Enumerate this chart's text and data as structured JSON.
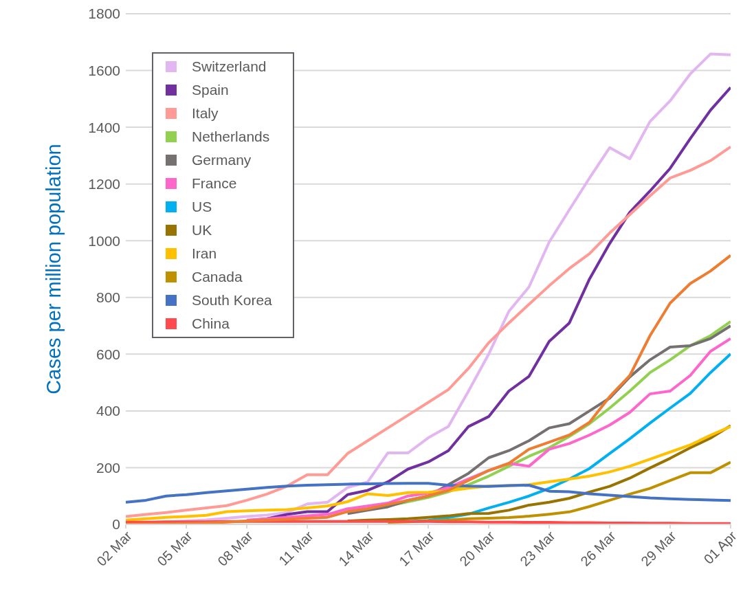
{
  "chart_data": {
    "type": "line",
    "ylabel": "Cases per million population",
    "categories": [
      "02 Mar",
      null,
      null,
      "05 Mar",
      null,
      null,
      "08 Mar",
      null,
      null,
      "11 Mar",
      null,
      null,
      "14 Mar",
      null,
      null,
      "17 Mar",
      null,
      null,
      "20 Mar",
      null,
      null,
      "23 Mar",
      null,
      null,
      "26 Mar",
      null,
      null,
      "29 Mar",
      null,
      null,
      "01 Apr"
    ],
    "series": [
      {
        "name": "Switzerland",
        "color": "#e2b6f0",
        "values": [
          3,
          5,
          8,
          12,
          16,
          22,
          28,
          33,
          42,
          72,
          78,
          130,
          150,
          252,
          252,
          305,
          345,
          470,
          600,
          751,
          837,
          995,
          1109,
          1221,
          1328,
          1289,
          1420,
          1493,
          1588,
          1658,
          1655
        ]
      },
      {
        "name": "Spain",
        "color": "#7030a0",
        "values": [
          null,
          null,
          null,
          null,
          null,
          null,
          13,
          20,
          35,
          45,
          45,
          105,
          120,
          150,
          195,
          220,
          260,
          345,
          380,
          470,
          522,
          645,
          710,
          865,
          990,
          1100,
          1175,
          1255,
          1360,
          1460,
          1540
        ]
      },
      {
        "name": "Italy",
        "color": "#ff9b94",
        "values": [
          28,
          35,
          42,
          50,
          58,
          66,
          85,
          107,
          135,
          175,
          175,
          250,
          295,
          340,
          385,
          430,
          475,
          550,
          640,
          710,
          776,
          841,
          902,
          954,
          1027,
          1092,
          1158,
          1221,
          1248,
          1282,
          1331
        ]
      },
      {
        "name": "Netherlands",
        "color": "#92d050",
        "values": [
          null,
          null,
          null,
          null,
          null,
          null,
          null,
          null,
          null,
          null,
          null,
          50,
          55,
          65,
          80,
          95,
          115,
          140,
          170,
          205,
          240,
          270,
          310,
          355,
          410,
          470,
          535,
          580,
          630,
          665,
          715
        ]
      },
      {
        "name": "Germany",
        "color": "#767171",
        "values": [
          null,
          null,
          null,
          null,
          null,
          null,
          null,
          null,
          null,
          null,
          null,
          38,
          50,
          62,
          85,
          100,
          140,
          180,
          235,
          260,
          295,
          340,
          355,
          400,
          445,
          520,
          580,
          625,
          630,
          655,
          700
        ]
      },
      {
        "name": "France",
        "color": "#ff66cc",
        "values": [
          null,
          null,
          null,
          null,
          null,
          null,
          15,
          20,
          25,
          30,
          35,
          55,
          65,
          75,
          100,
          110,
          130,
          160,
          190,
          215,
          205,
          265,
          285,
          315,
          350,
          395,
          460,
          470,
          525,
          610,
          655
        ]
      },
      {
        "name": "US",
        "color": "#00b0f0",
        "values": [
          null,
          null,
          null,
          null,
          null,
          null,
          null,
          null,
          null,
          null,
          null,
          null,
          null,
          null,
          10,
          14,
          24,
          36,
          58,
          78,
          100,
          127,
          160,
          197,
          250,
          302,
          357,
          410,
          462,
          535,
          601
        ]
      },
      {
        "name": "UK",
        "color": "#997300",
        "values": [
          null,
          null,
          null,
          null,
          null,
          null,
          null,
          null,
          null,
          null,
          null,
          12,
          15,
          17,
          20,
          25,
          30,
          38,
          39,
          50,
          68,
          78,
          92,
          114,
          134,
          163,
          199,
          233,
          270,
          304,
          348
        ]
      },
      {
        "name": "Iran",
        "color": "#ffc000",
        "values": [
          15,
          20,
          25,
          28,
          32,
          45,
          48,
          50,
          52,
          58,
          65,
          80,
          108,
          102,
          112,
          113,
          118,
          128,
          135,
          137,
          140,
          150,
          160,
          170,
          185,
          205,
          230,
          255,
          280,
          314,
          345
        ]
      },
      {
        "name": "Canada",
        "color": "#bf9000",
        "values": [
          null,
          null,
          null,
          null,
          null,
          null,
          null,
          null,
          null,
          null,
          null,
          null,
          null,
          7,
          9,
          12,
          15,
          20,
          22,
          24,
          29,
          36,
          44,
          63,
          85,
          107,
          127,
          155,
          182,
          182,
          219
        ]
      },
      {
        "name": "South Korea",
        "color": "#4472c4",
        "values": [
          78,
          85,
          100,
          105,
          112,
          118,
          124,
          130,
          135,
          138,
          140,
          142,
          143,
          144,
          145,
          145,
          138,
          135,
          134,
          137,
          138,
          117,
          115,
          108,
          103,
          98,
          93,
          90,
          88,
          86,
          84
        ]
      },
      {
        "name": "China",
        "color": "#ff4b4b",
        "values": [
          8,
          8,
          9,
          9,
          9,
          10,
          10,
          10,
          10,
          10,
          10,
          10,
          10,
          10,
          10,
          10,
          9,
          9,
          8,
          8,
          7,
          7,
          6,
          6,
          5,
          5,
          4,
          4,
          3,
          3,
          3
        ]
      },
      {
        "color": "#ed7d31",
        "values": [
          0,
          1,
          2,
          3,
          5,
          8,
          12,
          15,
          18,
          22,
          25,
          45,
          55,
          70,
          85,
          100,
          120,
          155,
          190,
          215,
          265,
          290,
          315,
          360,
          450,
          525,
          665,
          780,
          849,
          893,
          948
        ]
      }
    ],
    "ylim": [
      0,
      1800
    ],
    "yticks": [
      0,
      200,
      400,
      600,
      800,
      1000,
      1200,
      1400,
      1600,
      1800
    ],
    "grid": "y",
    "legend": "top left",
    "marker": "none",
    "line_style": "solid"
  }
}
